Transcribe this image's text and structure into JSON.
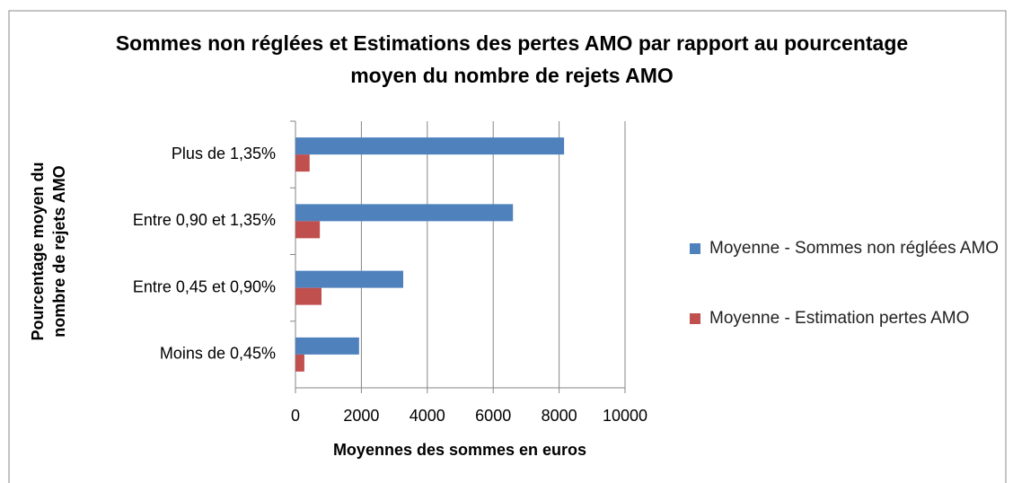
{
  "chart_data": {
    "type": "hbar",
    "title": "Sommes non réglées et Estimations des pertes AMO par rapport au pourcentage moyen du nombre de rejets AMO",
    "xlabel": "Moyennes des sommes en euros",
    "ylabel": "Pourcentage moyen du nombre de rejets AMO",
    "categories": [
      "Plus de 1,35%",
      "Entre 0,90 et 1,35%",
      "Entre 0,45 et 0,90%",
      "Moins de 0,45%"
    ],
    "series": [
      {
        "name": "Moyenne - Sommes non réglées AMO",
        "color": "#4f81bd",
        "values": [
          8150,
          6600,
          3270,
          1930
        ]
      },
      {
        "name": "Moyenne - Estimation pertes AMO",
        "color": "#c0504d",
        "values": [
          430,
          740,
          790,
          270
        ]
      }
    ],
    "xlim": [
      0,
      10000
    ],
    "xticks": [
      0,
      2000,
      4000,
      6000,
      8000,
      10000
    ],
    "grid": true,
    "legend": "right"
  }
}
